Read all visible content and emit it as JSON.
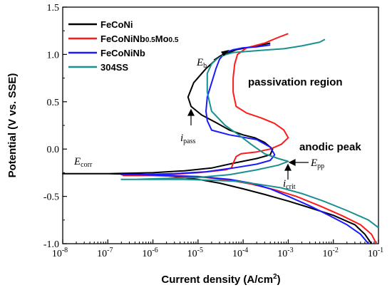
{
  "chart_data": {
    "type": "line",
    "title": "",
    "xlabel": "Current density (A/cm",
    "xlabel_sup": "2",
    "xlabel_end": ")",
    "ylabel": "Potential (V vs. SSE)",
    "x_scale": "log",
    "xlim": [
      1e-08,
      0.1
    ],
    "ylim": [
      -1.0,
      1.5
    ],
    "x_ticks": [
      {
        "value": 1e-08,
        "base": "10",
        "exp": "-8"
      },
      {
        "value": 1e-07,
        "base": "10",
        "exp": "-7"
      },
      {
        "value": 1e-06,
        "base": "10",
        "exp": "-6"
      },
      {
        "value": 1e-05,
        "base": "10",
        "exp": "-5"
      },
      {
        "value": 0.0001,
        "base": "10",
        "exp": "-4"
      },
      {
        "value": 0.001,
        "base": "10",
        "exp": "-3"
      },
      {
        "value": 0.01,
        "base": "10",
        "exp": "-2"
      },
      {
        "value": 0.1,
        "base": "10",
        "exp": "-1"
      }
    ],
    "y_ticks": [
      {
        "value": -1.0,
        "label": "-1.0"
      },
      {
        "value": -0.5,
        "label": "-0.5"
      },
      {
        "value": 0.0,
        "label": "0.0"
      },
      {
        "value": 0.5,
        "label": "0.5"
      },
      {
        "value": 1.0,
        "label": "1.0"
      },
      {
        "value": 1.5,
        "label": "1.5"
      }
    ],
    "grid": false,
    "legend_position": "top-left",
    "series": [
      {
        "name_parts": [
          {
            "t": "FeCoNi"
          }
        ],
        "color": "#000000",
        "points": [
          [
            0.07,
            -1.0
          ],
          [
            0.05,
            -0.9
          ],
          [
            0.03,
            -0.8
          ],
          [
            0.01,
            -0.7
          ],
          [
            0.003,
            -0.62
          ],
          [
            0.001,
            -0.55
          ],
          [
            0.0003,
            -0.48
          ],
          [
            0.0001,
            -0.42
          ],
          [
            3e-05,
            -0.36
          ],
          [
            1e-05,
            -0.32
          ],
          [
            3e-06,
            -0.29
          ],
          [
            1e-06,
            -0.27
          ],
          [
            1e-07,
            -0.26
          ],
          [
            1e-08,
            -0.26
          ],
          [
            1e-07,
            -0.26
          ],
          [
            1e-06,
            -0.25
          ],
          [
            5e-06,
            -0.23
          ],
          [
            2e-05,
            -0.2
          ],
          [
            6e-05,
            -0.15
          ],
          [
            0.0002,
            -0.1
          ],
          [
            0.0004,
            -0.06
          ],
          [
            0.00045,
            0.0
          ],
          [
            0.0003,
            0.07
          ],
          [
            0.00018,
            0.12
          ],
          [
            0.0001,
            0.15
          ],
          [
            5e-05,
            0.2
          ],
          [
            2.5e-05,
            0.28
          ],
          [
            1.2e-05,
            0.36
          ],
          [
            7e-06,
            0.45
          ],
          [
            6e-06,
            0.55
          ],
          [
            8e-06,
            0.7
          ],
          [
            1.5e-05,
            0.85
          ],
          [
            3e-05,
            0.98
          ],
          [
            7e-05,
            1.05
          ],
          [
            0.0002,
            1.09
          ],
          [
            0.0004,
            1.12
          ]
        ]
      },
      {
        "name_parts": [
          {
            "t": "FeCoNiNb"
          },
          {
            "t": "0.5",
            "sub": true
          },
          {
            "t": "Mo"
          },
          {
            "t": "0.5",
            "sub": true
          }
        ],
        "color": "#ff1a1a",
        "points": [
          [
            0.09,
            -1.0
          ],
          [
            0.07,
            -0.9
          ],
          [
            0.04,
            -0.8
          ],
          [
            0.015,
            -0.7
          ],
          [
            0.005,
            -0.6
          ],
          [
            0.0015,
            -0.5
          ],
          [
            0.0005,
            -0.43
          ],
          [
            0.00015,
            -0.37
          ],
          [
            5e-05,
            -0.33
          ],
          [
            1.5e-05,
            -0.3
          ],
          [
            5e-06,
            -0.29
          ],
          [
            1e-06,
            -0.28
          ],
          [
            5e-07,
            -0.28
          ],
          [
            2.2e-07,
            -0.28
          ],
          [
            5e-07,
            -0.28
          ],
          [
            2e-06,
            -0.27
          ],
          [
            1e-05,
            -0.25
          ],
          [
            4e-05,
            -0.22
          ],
          [
            5.5e-05,
            -0.2
          ],
          [
            6e-05,
            -0.15
          ],
          [
            7e-05,
            -0.08
          ],
          [
            9e-05,
            -0.05
          ],
          [
            0.0002,
            -0.03
          ],
          [
            0.0004,
            0.0
          ],
          [
            0.0007,
            0.05
          ],
          [
            0.001,
            0.12
          ],
          [
            0.0008,
            0.2
          ],
          [
            0.0005,
            0.27
          ],
          [
            0.00025,
            0.33
          ],
          [
            0.00012,
            0.38
          ],
          [
            7e-05,
            0.45
          ],
          [
            6e-05,
            0.6
          ],
          [
            6e-05,
            0.75
          ],
          [
            6.5e-05,
            0.9
          ],
          [
            7.5e-05,
            1.0
          ],
          [
            0.00012,
            1.07
          ],
          [
            0.0003,
            1.12
          ],
          [
            0.0006,
            1.18
          ],
          [
            0.001,
            1.22
          ]
        ]
      },
      {
        "name_parts": [
          {
            "t": "FeCoNiNb"
          }
        ],
        "color": "#1a1aff",
        "points": [
          [
            0.06,
            -1.0
          ],
          [
            0.04,
            -0.9
          ],
          [
            0.02,
            -0.8
          ],
          [
            0.008,
            -0.7
          ],
          [
            0.003,
            -0.6
          ],
          [
            0.001,
            -0.5
          ],
          [
            0.0004,
            -0.42
          ],
          [
            0.00015,
            -0.36
          ],
          [
            5e-05,
            -0.32
          ],
          [
            1e-05,
            -0.29
          ],
          [
            2e-06,
            -0.28
          ],
          [
            5e-07,
            -0.27
          ],
          [
            2e-07,
            -0.27
          ],
          [
            5e-07,
            -0.27
          ],
          [
            3e-06,
            -0.26
          ],
          [
            1.5e-05,
            -0.24
          ],
          [
            6e-05,
            -0.2
          ],
          [
            0.0002,
            -0.16
          ],
          [
            0.0004,
            -0.12
          ],
          [
            0.0005,
            -0.06
          ],
          [
            0.0004,
            0.02
          ],
          [
            0.0002,
            0.1
          ],
          [
            5e-05,
            0.15
          ],
          [
            2e-05,
            0.2
          ],
          [
            1.6e-05,
            0.3
          ],
          [
            1.5e-05,
            0.4
          ],
          [
            1.6e-05,
            0.55
          ],
          [
            2e-05,
            0.7
          ],
          [
            2.5e-05,
            0.85
          ],
          [
            3e-05,
            0.95
          ],
          [
            4e-05,
            1.02
          ],
          [
            6e-05,
            1.05
          ],
          [
            0.0001,
            1.07
          ],
          [
            0.0002,
            1.08
          ],
          [
            0.0004,
            1.1
          ]
        ]
      },
      {
        "name_parts": [
          {
            "t": "304SS"
          }
        ],
        "color": "#1a9090",
        "points": [
          [
            0.1,
            -0.83
          ],
          [
            0.06,
            -0.75
          ],
          [
            0.02,
            -0.65
          ],
          [
            0.006,
            -0.55
          ],
          [
            0.002,
            -0.47
          ],
          [
            0.0007,
            -0.41
          ],
          [
            0.0002,
            -0.37
          ],
          [
            7e-05,
            -0.34
          ],
          [
            2e-05,
            -0.33
          ],
          [
            5e-06,
            -0.32
          ],
          [
            1e-06,
            -0.32
          ],
          [
            4e-07,
            -0.32
          ],
          [
            2e-07,
            -0.32
          ],
          [
            4e-07,
            -0.32
          ],
          [
            2e-06,
            -0.31
          ],
          [
            1e-05,
            -0.3
          ],
          [
            5e-05,
            -0.27
          ],
          [
            0.0002,
            -0.22
          ],
          [
            0.0006,
            -0.17
          ],
          [
            0.001,
            -0.13
          ],
          [
            0.0006,
            -0.1
          ],
          [
            0.0003,
            -0.05
          ],
          [
            0.00015,
            0.05
          ],
          [
            8e-05,
            0.15
          ],
          [
            4e-05,
            0.25
          ],
          [
            2e-05,
            0.4
          ],
          [
            1.6e-05,
            0.6
          ],
          [
            1.6e-05,
            0.8
          ],
          [
            2e-05,
            0.9
          ],
          [
            3e-05,
            0.98
          ],
          [
            6e-05,
            1.02
          ],
          [
            0.0002,
            1.04
          ],
          [
            0.0008,
            1.06
          ],
          [
            0.002,
            1.09
          ],
          [
            0.005,
            1.13
          ],
          [
            0.0065,
            1.16
          ]
        ]
      }
    ],
    "annotations": {
      "passivation": "passivation region",
      "anodic": "anodic peak",
      "ecorr_main": "E",
      "ecorr_sub": "corr",
      "eb_main": "E",
      "eb_sub": "b",
      "epp_main": "E",
      "epp_sub": "pp",
      "ipass_main": "i",
      "ipass_sub": "pass",
      "icrit_main": "i",
      "icrit_sub": "crit"
    }
  }
}
